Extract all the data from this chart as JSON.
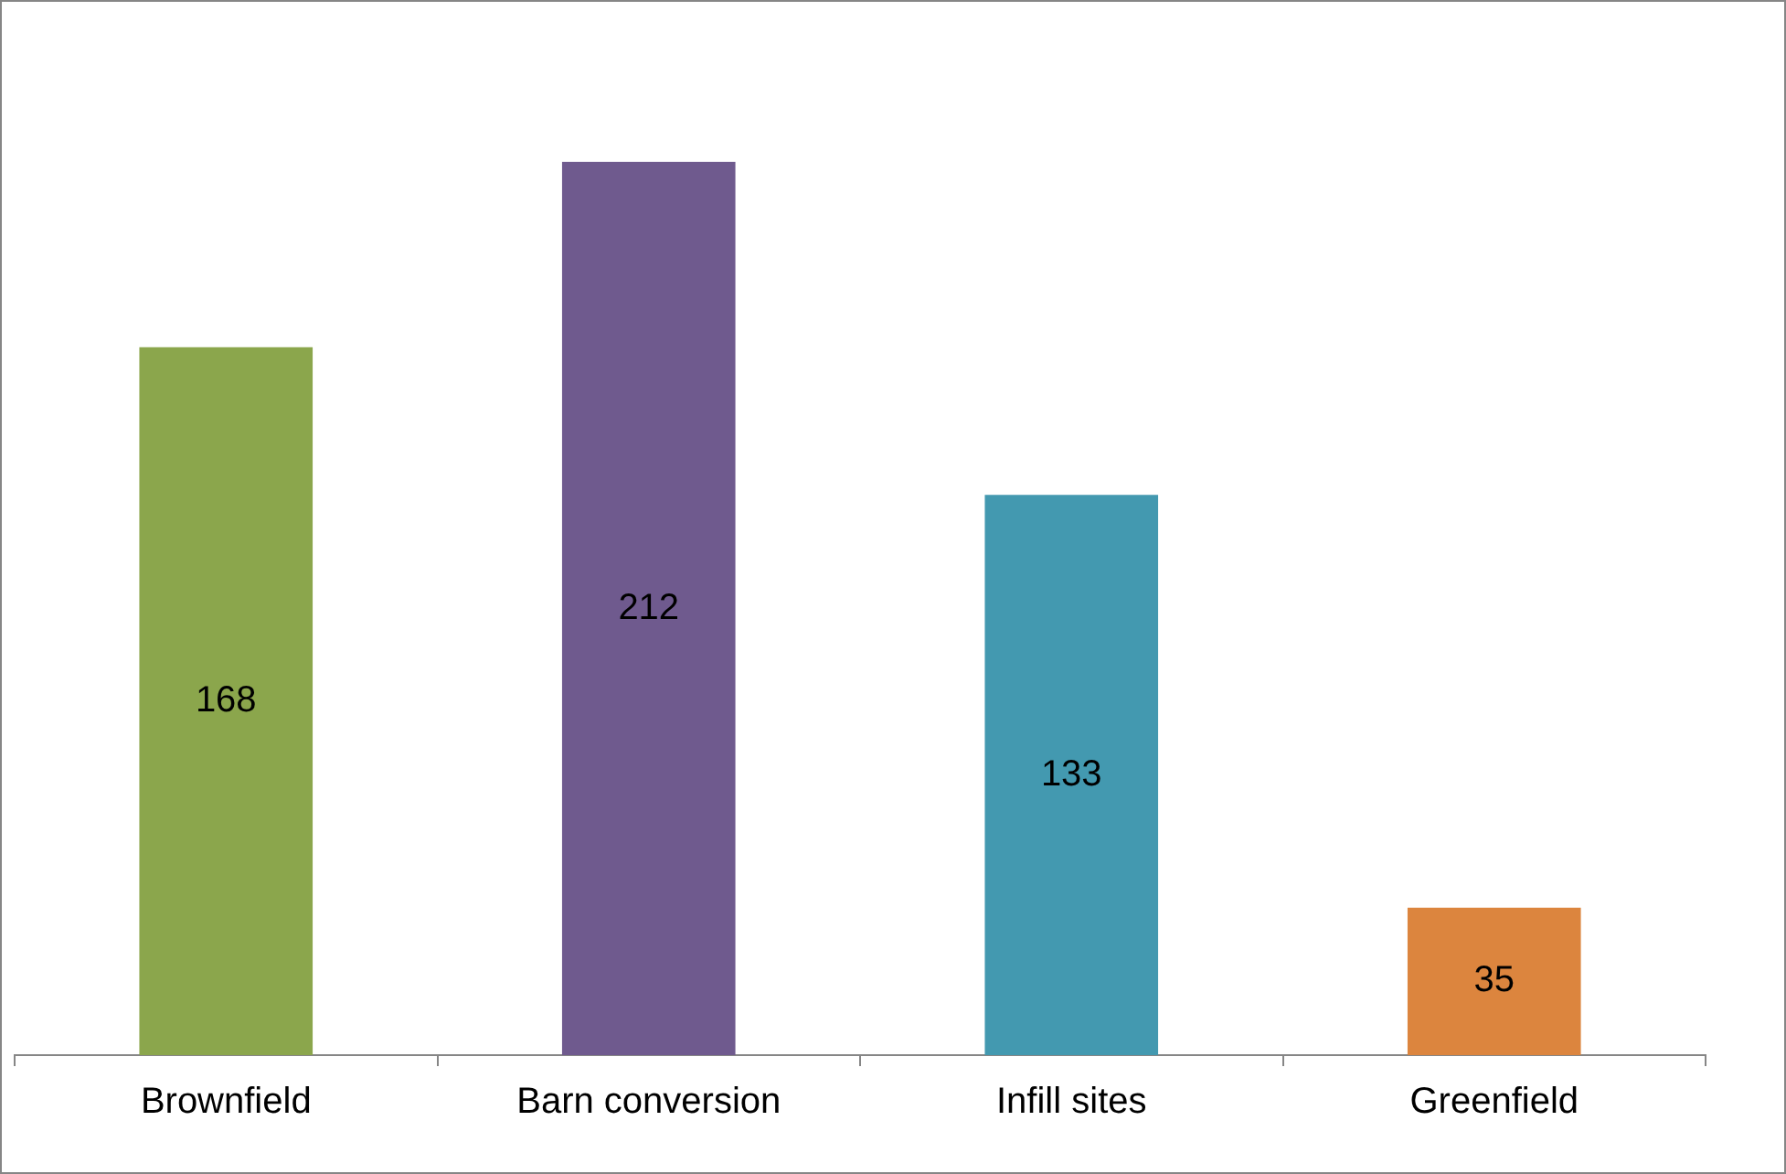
{
  "chart_data": {
    "type": "bar",
    "categories": [
      "Brownfield",
      "Barn conversion",
      "Infill sites",
      "Greenfield"
    ],
    "values": [
      168,
      212,
      133,
      35
    ],
    "colors": [
      "#8ba64c",
      "#6f5a8e",
      "#4399b0",
      "#dc853e"
    ],
    "ylim": [
      0,
      250
    ],
    "tick_labels": "x",
    "data_labels": true,
    "grid": false,
    "legend": false
  }
}
